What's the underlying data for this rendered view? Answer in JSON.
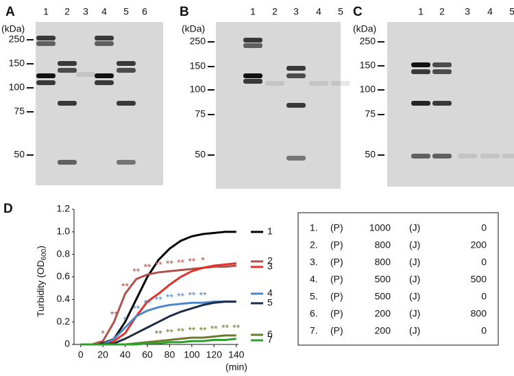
{
  "gels": [
    {
      "label": "A",
      "unit": "(kDa)",
      "lanes": [
        "1",
        "2",
        "3",
        "4",
        "5",
        "6"
      ],
      "markers": [
        250,
        150,
        100,
        75,
        50
      ]
    },
    {
      "label": "B",
      "unit": "(kDa)",
      "lanes": [
        "1",
        "2",
        "3",
        "4",
        "5"
      ],
      "markers": [
        250,
        150,
        100,
        75,
        50
      ]
    },
    {
      "label": "C",
      "unit": "(kDa)",
      "lanes": [
        "1",
        "2",
        "3",
        "4",
        "5"
      ],
      "markers": [
        250,
        150,
        100,
        75,
        50
      ]
    }
  ],
  "chart_data": {
    "type": "line",
    "panel": "D",
    "ylabel": [
      "Turbidity (OD",
      "600",
      ")"
    ],
    "xlabel": "(min)",
    "x": [
      0,
      10,
      20,
      30,
      40,
      50,
      60,
      70,
      80,
      90,
      100,
      110,
      120,
      130,
      140
    ],
    "xlim": [
      -6,
      142
    ],
    "xticks": [
      0,
      20,
      40,
      60,
      80,
      100,
      120,
      140
    ],
    "ylim": [
      0,
      1.2
    ],
    "yticks": [
      0,
      0.2,
      0.4,
      0.6,
      0.8,
      {
        "value": 1,
        "label": "1.0"
      },
      1.2
    ],
    "series": [
      {
        "name": "1",
        "color": "#000000",
        "values": [
          0,
          0,
          0.01,
          0.05,
          0.2,
          0.4,
          0.6,
          0.75,
          0.85,
          0.92,
          0.96,
          0.98,
          0.99,
          1.0,
          1.0
        ]
      },
      {
        "name": "2",
        "color": "#b0504a",
        "values": [
          0,
          0,
          0.03,
          0.2,
          0.45,
          0.58,
          0.62,
          0.64,
          0.65,
          0.66,
          0.67,
          0.68,
          0.69,
          0.69,
          0.7
        ],
        "stars": [
          null,
          null,
          "*",
          "**",
          "**",
          "**",
          "**",
          "**",
          "**",
          "**",
          "**",
          "*",
          null,
          null,
          null
        ]
      },
      {
        "name": "3",
        "color": "#e8302a",
        "values": [
          0,
          0,
          0,
          0.03,
          0.1,
          0.25,
          0.38,
          0.45,
          0.53,
          0.6,
          0.65,
          0.68,
          0.7,
          0.71,
          0.72
        ]
      },
      {
        "name": "4",
        "color": "#4a86c8",
        "values": [
          0,
          0,
          0,
          0.05,
          0.15,
          0.25,
          0.3,
          0.33,
          0.35,
          0.36,
          0.37,
          0.37,
          0.38,
          0.38,
          0.38
        ],
        "stars": [
          null,
          null,
          null,
          null,
          "*",
          "**",
          "**",
          "**",
          "**",
          "**",
          "**",
          "**",
          null,
          null,
          null
        ]
      },
      {
        "name": "5",
        "color": "#1f2a44",
        "values": [
          0,
          0,
          0,
          0.01,
          0.05,
          0.1,
          0.15,
          0.2,
          0.25,
          0.29,
          0.32,
          0.35,
          0.37,
          0.38,
          0.38
        ]
      },
      {
        "name": "6",
        "color": "#6b7a2a",
        "values": [
          0,
          0,
          0,
          0,
          0,
          0.01,
          0.02,
          0.03,
          0.04,
          0.05,
          0.06,
          0.06,
          0.07,
          0.08,
          0.08
        ],
        "stars": [
          null,
          null,
          null,
          null,
          null,
          null,
          null,
          "**",
          "**",
          "**",
          "**",
          "**",
          "**",
          "**",
          "**"
        ]
      },
      {
        "name": "7",
        "color": "#2ca02c",
        "values": [
          0,
          0,
          0,
          0,
          0,
          0,
          0.01,
          0.01,
          0.02,
          0.02,
          0.03,
          0.03,
          0.04,
          0.04,
          0.05
        ]
      }
    ],
    "legend_table": [
      [
        "1.",
        "(P)",
        "1000",
        "(J)",
        "0"
      ],
      [
        "2.",
        "(P)",
        "800",
        "(J)",
        "200"
      ],
      [
        "3.",
        "(P)",
        "800",
        "(J)",
        "0"
      ],
      [
        "4.",
        "(P)",
        "500",
        "(J)",
        "500"
      ],
      [
        "5.",
        "(P)",
        "500",
        "(J)",
        "0"
      ],
      [
        "6.",
        "(P)",
        "200",
        "(J)",
        "800"
      ],
      [
        "7.",
        "(P)",
        "200",
        "(J)",
        "0"
      ]
    ]
  }
}
